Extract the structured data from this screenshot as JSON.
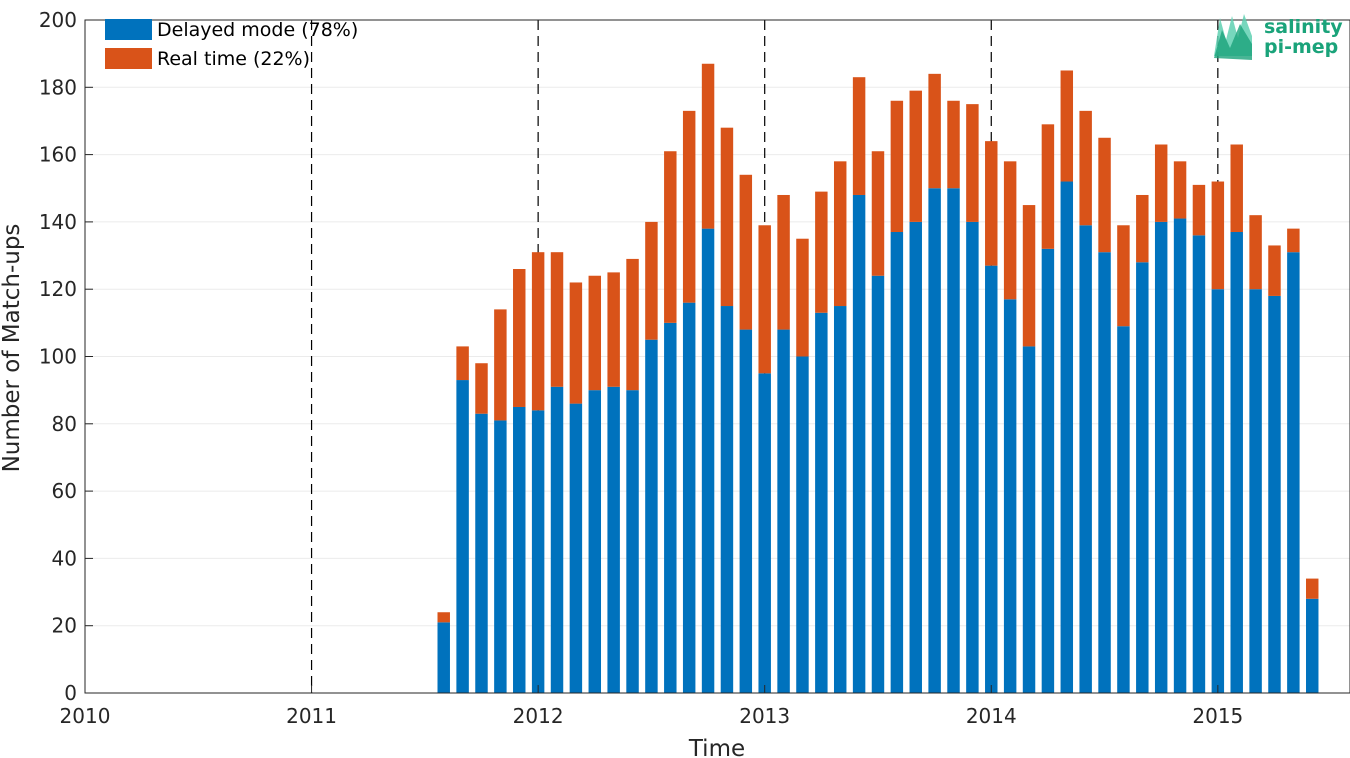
{
  "chart_data": {
    "type": "bar",
    "stacked": true,
    "xlabel": "Time",
    "ylabel": "Number of Match-ups",
    "xlim": [
      "2010-01",
      "2015-08"
    ],
    "ylim": [
      0,
      200
    ],
    "y_ticks": [
      0,
      20,
      40,
      60,
      80,
      100,
      120,
      140,
      160,
      180,
      200
    ],
    "x_ticks": [
      "2010",
      "2011",
      "2012",
      "2013",
      "2014",
      "2015"
    ],
    "grid": true,
    "legend_position": "top-left",
    "year_separators": [
      "2011",
      "2012",
      "2013",
      "2014",
      "2015"
    ],
    "months": [
      "2011-08",
      "2011-09",
      "2011-10",
      "2011-11",
      "2011-12",
      "2012-01",
      "2012-02",
      "2012-03",
      "2012-04",
      "2012-05",
      "2012-06",
      "2012-07",
      "2012-08",
      "2012-09",
      "2012-10",
      "2012-11",
      "2012-12",
      "2013-01",
      "2013-02",
      "2013-03",
      "2013-04",
      "2013-05",
      "2013-06",
      "2013-07",
      "2013-08",
      "2013-09",
      "2013-10",
      "2013-11",
      "2013-12",
      "2014-01",
      "2014-02",
      "2014-03",
      "2014-04",
      "2014-05",
      "2014-06",
      "2014-07",
      "2014-08",
      "2014-09",
      "2014-10",
      "2014-11",
      "2014-12",
      "2015-01",
      "2015-02",
      "2015-03",
      "2015-04",
      "2015-05",
      "2015-06",
      "2015-07"
    ],
    "series": [
      {
        "name": "Delayed mode (78%)",
        "color": "#0072BD",
        "values": [
          21,
          93,
          83,
          81,
          85,
          84,
          91,
          86,
          90,
          91,
          90,
          105,
          110,
          116,
          138,
          115,
          108,
          95,
          108,
          100,
          113,
          115,
          148,
          124,
          137,
          140,
          150,
          150,
          140,
          127,
          117,
          103,
          132,
          152,
          139,
          131,
          109,
          128,
          140,
          141,
          136,
          120,
          137,
          120,
          118,
          131,
          28,
          0
        ]
      },
      {
        "name": "Real time (22%)",
        "color": "#D95319",
        "values": [
          3,
          10,
          15,
          33,
          41,
          47,
          40,
          36,
          34,
          34,
          39,
          35,
          51,
          57,
          49,
          53,
          46,
          44,
          40,
          35,
          36,
          43,
          35,
          37,
          39,
          39,
          34,
          26,
          35,
          37,
          41,
          42,
          37,
          33,
          34,
          34,
          30,
          20,
          23,
          17,
          15,
          32,
          26,
          22,
          15,
          7,
          6,
          0
        ]
      }
    ]
  },
  "logo": {
    "line1": "salinity",
    "line2": "pi-mep",
    "color": "#1AA37A"
  }
}
